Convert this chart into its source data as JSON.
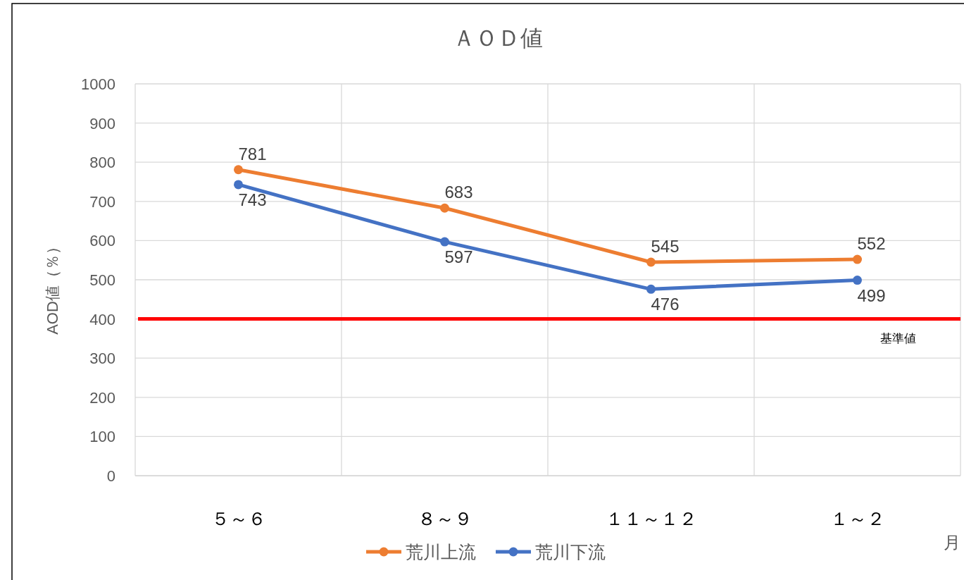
{
  "chart_data": {
    "type": "line",
    "title": "ＡＯＤ値",
    "xlabel": "月",
    "ylabel": "AOD値（％）",
    "categories": [
      "５～６",
      "８～９",
      "１１～１２",
      "１～２"
    ],
    "series": [
      {
        "name": "荒川上流",
        "color": "#ed7d31",
        "values": [
          781,
          683,
          545,
          552
        ]
      },
      {
        "name": "荒川下流",
        "color": "#4472c4",
        "values": [
          743,
          597,
          476,
          499
        ]
      }
    ],
    "ylim": [
      0,
      1000
    ],
    "yticks": [
      0,
      100,
      200,
      300,
      400,
      500,
      600,
      700,
      800,
      900,
      1000
    ],
    "ref_lines": [
      {
        "axis": "y",
        "value": 400,
        "label": "基準値",
        "color": "#ff0000"
      }
    ],
    "data_labels": true,
    "grid": true,
    "legend": "bottom",
    "marker": "circle",
    "line_style": "solid"
  }
}
